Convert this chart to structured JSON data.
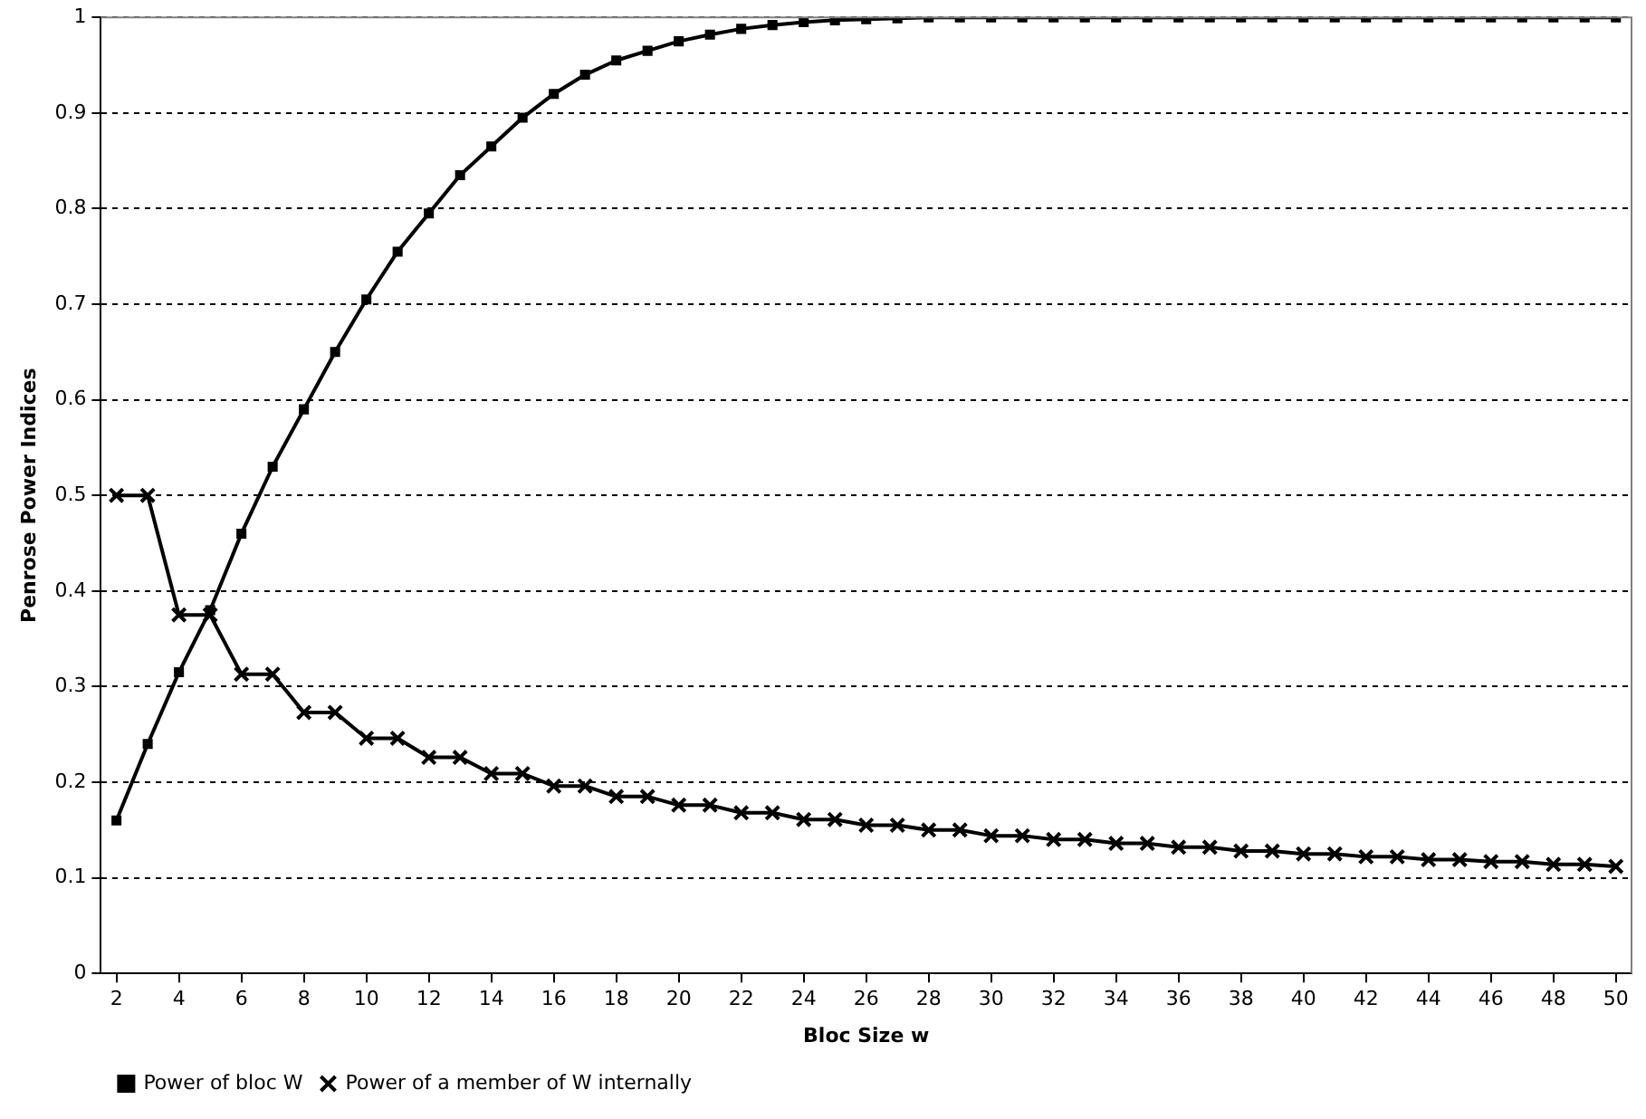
{
  "chart_data": {
    "type": "line",
    "xlabel": "Bloc Size w",
    "ylabel": "Penrose Power Indices",
    "x": [
      2,
      3,
      4,
      5,
      6,
      7,
      8,
      9,
      10,
      11,
      12,
      13,
      14,
      15,
      16,
      17,
      18,
      19,
      20,
      21,
      22,
      23,
      24,
      25,
      26,
      27,
      28,
      29,
      30,
      31,
      32,
      33,
      34,
      35,
      36,
      37,
      38,
      39,
      40,
      41,
      42,
      43,
      44,
      45,
      46,
      47,
      48,
      49,
      50
    ],
    "series": [
      {
        "name": "Power of bloc W",
        "color": "#000000",
        "marker": "square",
        "values": [
          0.16,
          0.24,
          0.315,
          0.38,
          0.46,
          0.53,
          0.59,
          0.65,
          0.705,
          0.755,
          0.795,
          0.835,
          0.865,
          0.895,
          0.92,
          0.94,
          0.955,
          0.965,
          0.975,
          0.982,
          0.988,
          0.992,
          0.995,
          0.997,
          0.998,
          0.999,
          1,
          1,
          1,
          1,
          1,
          1,
          1,
          1,
          1,
          1,
          1,
          1,
          1,
          1,
          1,
          1,
          1,
          1,
          1,
          1,
          1,
          1,
          1
        ]
      },
      {
        "name": "Power of a member of W internally",
        "color": "#000000",
        "marker": "cross",
        "values": [
          0.5,
          0.5,
          0.375,
          0.375,
          0.313,
          0.313,
          0.273,
          0.273,
          0.246,
          0.246,
          0.226,
          0.226,
          0.209,
          0.209,
          0.196,
          0.196,
          0.185,
          0.185,
          0.176,
          0.176,
          0.168,
          0.168,
          0.161,
          0.161,
          0.155,
          0.155,
          0.15,
          0.15,
          0.144,
          0.144,
          0.14,
          0.14,
          0.136,
          0.136,
          0.132,
          0.132,
          0.128,
          0.128,
          0.125,
          0.125,
          0.122,
          0.122,
          0.119,
          0.119,
          0.117,
          0.117,
          0.114,
          0.114,
          0.112
        ]
      }
    ],
    "xlim": [
      1.5,
      50.5
    ],
    "xticks": [
      2,
      4,
      6,
      8,
      10,
      12,
      14,
      16,
      18,
      20,
      22,
      24,
      26,
      28,
      30,
      32,
      34,
      36,
      38,
      40,
      42,
      44,
      46,
      48,
      50
    ],
    "ylim": [
      0,
      1
    ],
    "yticks": [
      0,
      0.1,
      0.2,
      0.3,
      0.4,
      0.5,
      0.6,
      0.7,
      0.8,
      0.9,
      1
    ],
    "grid": "y",
    "legend": "bottom",
    "line_style": "solid"
  }
}
